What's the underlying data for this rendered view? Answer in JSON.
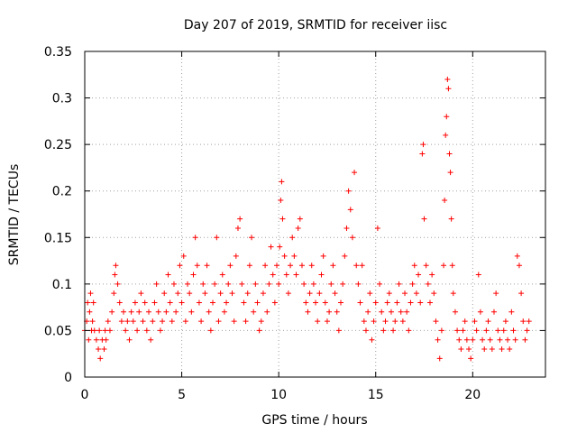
{
  "chart_data": {
    "type": "scatter",
    "title": "Day 207 of 2019, SRMTID for receiver iisc",
    "xlabel": "GPS time / hours",
    "ylabel": "SRMTID / TECUs",
    "xlim": [
      0,
      23.75
    ],
    "ylim": [
      0,
      0.35
    ],
    "x_ticks": [
      0,
      5,
      10,
      15,
      20
    ],
    "x_tick_labels": [
      "0",
      "5",
      "10",
      "15",
      "20"
    ],
    "y_ticks": [
      0,
      0.05,
      0.1,
      0.15,
      0.2,
      0.25,
      0.3,
      0.35
    ],
    "y_tick_labels": [
      "0",
      "0.05",
      "0.1",
      "0.15",
      "0.2",
      "0.25",
      "0.3",
      "0.35"
    ],
    "grid": true,
    "marker": "+",
    "series": [
      {
        "name": "SRMTID",
        "color": "#ff0000",
        "points": [
          [
            0.0,
            0.05
          ],
          [
            0.1,
            0.06
          ],
          [
            0.15,
            0.08
          ],
          [
            0.2,
            0.04
          ],
          [
            0.25,
            0.07
          ],
          [
            0.3,
            0.09
          ],
          [
            0.35,
            0.05
          ],
          [
            0.4,
            0.06
          ],
          [
            0.45,
            0.08
          ],
          [
            0.5,
            0.05
          ],
          [
            0.6,
            0.04
          ],
          [
            0.7,
            0.03
          ],
          [
            0.75,
            0.05
          ],
          [
            0.8,
            0.02
          ],
          [
            0.9,
            0.04
          ],
          [
            1.0,
            0.03
          ],
          [
            1.05,
            0.05
          ],
          [
            1.1,
            0.04
          ],
          [
            1.2,
            0.06
          ],
          [
            1.3,
            0.05
          ],
          [
            1.4,
            0.07
          ],
          [
            1.5,
            0.09
          ],
          [
            1.55,
            0.11
          ],
          [
            1.6,
            0.12
          ],
          [
            1.7,
            0.1
          ],
          [
            1.8,
            0.08
          ],
          [
            1.9,
            0.06
          ],
          [
            2.0,
            0.07
          ],
          [
            2.1,
            0.05
          ],
          [
            2.2,
            0.06
          ],
          [
            2.3,
            0.04
          ],
          [
            2.4,
            0.07
          ],
          [
            2.5,
            0.06
          ],
          [
            2.6,
            0.08
          ],
          [
            2.7,
            0.05
          ],
          [
            2.8,
            0.07
          ],
          [
            2.9,
            0.09
          ],
          [
            3.0,
            0.06
          ],
          [
            3.1,
            0.08
          ],
          [
            3.2,
            0.05
          ],
          [
            3.3,
            0.07
          ],
          [
            3.4,
            0.04
          ],
          [
            3.5,
            0.06
          ],
          [
            3.6,
            0.08
          ],
          [
            3.7,
            0.1
          ],
          [
            3.8,
            0.07
          ],
          [
            3.9,
            0.05
          ],
          [
            4.0,
            0.06
          ],
          [
            4.1,
            0.09
          ],
          [
            4.2,
            0.07
          ],
          [
            4.3,
            0.11
          ],
          [
            4.4,
            0.08
          ],
          [
            4.5,
            0.06
          ],
          [
            4.6,
            0.1
          ],
          [
            4.7,
            0.07
          ],
          [
            4.8,
            0.09
          ],
          [
            4.9,
            0.12
          ],
          [
            5.0,
            0.08
          ],
          [
            5.1,
            0.13
          ],
          [
            5.2,
            0.06
          ],
          [
            5.3,
            0.1
          ],
          [
            5.4,
            0.09
          ],
          [
            5.5,
            0.07
          ],
          [
            5.6,
            0.11
          ],
          [
            5.7,
            0.15
          ],
          [
            5.8,
            0.12
          ],
          [
            5.9,
            0.08
          ],
          [
            6.0,
            0.06
          ],
          [
            6.1,
            0.1
          ],
          [
            6.2,
            0.09
          ],
          [
            6.3,
            0.12
          ],
          [
            6.4,
            0.07
          ],
          [
            6.5,
            0.05
          ],
          [
            6.6,
            0.08
          ],
          [
            6.7,
            0.1
          ],
          [
            6.8,
            0.15
          ],
          [
            6.9,
            0.06
          ],
          [
            7.0,
            0.09
          ],
          [
            7.1,
            0.11
          ],
          [
            7.2,
            0.07
          ],
          [
            7.3,
            0.08
          ],
          [
            7.4,
            0.1
          ],
          [
            7.5,
            0.12
          ],
          [
            7.6,
            0.09
          ],
          [
            7.7,
            0.06
          ],
          [
            7.8,
            0.13
          ],
          [
            7.9,
            0.16
          ],
          [
            8.0,
            0.17
          ],
          [
            8.1,
            0.1
          ],
          [
            8.2,
            0.08
          ],
          [
            8.3,
            0.06
          ],
          [
            8.4,
            0.09
          ],
          [
            8.5,
            0.12
          ],
          [
            8.6,
            0.15
          ],
          [
            8.7,
            0.07
          ],
          [
            8.8,
            0.1
          ],
          [
            8.9,
            0.08
          ],
          [
            9.0,
            0.05
          ],
          [
            9.1,
            0.06
          ],
          [
            9.2,
            0.09
          ],
          [
            9.3,
            0.12
          ],
          [
            9.4,
            0.07
          ],
          [
            9.5,
            0.1
          ],
          [
            9.6,
            0.14
          ],
          [
            9.7,
            0.11
          ],
          [
            9.8,
            0.08
          ],
          [
            9.9,
            0.12
          ],
          [
            10.0,
            0.1
          ],
          [
            10.05,
            0.14
          ],
          [
            10.1,
            0.19
          ],
          [
            10.15,
            0.21
          ],
          [
            10.2,
            0.17
          ],
          [
            10.3,
            0.13
          ],
          [
            10.4,
            0.11
          ],
          [
            10.5,
            0.09
          ],
          [
            10.6,
            0.12
          ],
          [
            10.7,
            0.15
          ],
          [
            10.8,
            0.13
          ],
          [
            10.9,
            0.11
          ],
          [
            11.0,
            0.16
          ],
          [
            11.1,
            0.17
          ],
          [
            11.2,
            0.12
          ],
          [
            11.3,
            0.1
          ],
          [
            11.4,
            0.08
          ],
          [
            11.5,
            0.07
          ],
          [
            11.6,
            0.09
          ],
          [
            11.7,
            0.12
          ],
          [
            11.8,
            0.1
          ],
          [
            11.9,
            0.08
          ],
          [
            12.0,
            0.06
          ],
          [
            12.1,
            0.09
          ],
          [
            12.2,
            0.11
          ],
          [
            12.3,
            0.13
          ],
          [
            12.4,
            0.08
          ],
          [
            12.5,
            0.06
          ],
          [
            12.6,
            0.07
          ],
          [
            12.7,
            0.1
          ],
          [
            12.8,
            0.12
          ],
          [
            12.9,
            0.09
          ],
          [
            13.0,
            0.07
          ],
          [
            13.1,
            0.05
          ],
          [
            13.2,
            0.08
          ],
          [
            13.3,
            0.1
          ],
          [
            13.4,
            0.13
          ],
          [
            13.5,
            0.16
          ],
          [
            13.6,
            0.2
          ],
          [
            13.7,
            0.18
          ],
          [
            13.8,
            0.15
          ],
          [
            13.9,
            0.22
          ],
          [
            14.0,
            0.12
          ],
          [
            14.1,
            0.1
          ],
          [
            14.2,
            0.08
          ],
          [
            14.3,
            0.12
          ],
          [
            14.4,
            0.06
          ],
          [
            14.5,
            0.05
          ],
          [
            14.6,
            0.07
          ],
          [
            14.7,
            0.09
          ],
          [
            14.8,
            0.04
          ],
          [
            14.9,
            0.06
          ],
          [
            15.0,
            0.08
          ],
          [
            15.1,
            0.16
          ],
          [
            15.2,
            0.1
          ],
          [
            15.3,
            0.07
          ],
          [
            15.4,
            0.05
          ],
          [
            15.5,
            0.06
          ],
          [
            15.6,
            0.08
          ],
          [
            15.7,
            0.09
          ],
          [
            15.8,
            0.07
          ],
          [
            15.9,
            0.05
          ],
          [
            16.0,
            0.06
          ],
          [
            16.1,
            0.08
          ],
          [
            16.2,
            0.1
          ],
          [
            16.3,
            0.07
          ],
          [
            16.4,
            0.06
          ],
          [
            16.5,
            0.09
          ],
          [
            16.6,
            0.07
          ],
          [
            16.7,
            0.05
          ],
          [
            16.8,
            0.08
          ],
          [
            16.9,
            0.1
          ],
          [
            17.0,
            0.12
          ],
          [
            17.1,
            0.09
          ],
          [
            17.2,
            0.11
          ],
          [
            17.3,
            0.08
          ],
          [
            17.4,
            0.24
          ],
          [
            17.45,
            0.25
          ],
          [
            17.5,
            0.17
          ],
          [
            17.6,
            0.12
          ],
          [
            17.7,
            0.1
          ],
          [
            17.8,
            0.08
          ],
          [
            17.9,
            0.11
          ],
          [
            18.0,
            0.09
          ],
          [
            18.1,
            0.06
          ],
          [
            18.2,
            0.04
          ],
          [
            18.3,
            0.02
          ],
          [
            18.4,
            0.05
          ],
          [
            18.5,
            0.12
          ],
          [
            18.55,
            0.19
          ],
          [
            18.6,
            0.26
          ],
          [
            18.65,
            0.28
          ],
          [
            18.7,
            0.32
          ],
          [
            18.75,
            0.31
          ],
          [
            18.8,
            0.24
          ],
          [
            18.85,
            0.22
          ],
          [
            18.9,
            0.17
          ],
          [
            18.95,
            0.12
          ],
          [
            19.0,
            0.09
          ],
          [
            19.1,
            0.07
          ],
          [
            19.2,
            0.05
          ],
          [
            19.3,
            0.04
          ],
          [
            19.4,
            0.03
          ],
          [
            19.5,
            0.05
          ],
          [
            19.6,
            0.06
          ],
          [
            19.7,
            0.04
          ],
          [
            19.8,
            0.03
          ],
          [
            19.9,
            0.02
          ],
          [
            20.0,
            0.04
          ],
          [
            20.1,
            0.06
          ],
          [
            20.2,
            0.05
          ],
          [
            20.3,
            0.11
          ],
          [
            20.4,
            0.07
          ],
          [
            20.5,
            0.04
          ],
          [
            20.6,
            0.03
          ],
          [
            20.7,
            0.05
          ],
          [
            20.8,
            0.06
          ],
          [
            20.9,
            0.04
          ],
          [
            21.0,
            0.03
          ],
          [
            21.1,
            0.07
          ],
          [
            21.2,
            0.09
          ],
          [
            21.3,
            0.05
          ],
          [
            21.4,
            0.04
          ],
          [
            21.5,
            0.03
          ],
          [
            21.6,
            0.05
          ],
          [
            21.7,
            0.06
          ],
          [
            21.8,
            0.04
          ],
          [
            21.9,
            0.03
          ],
          [
            22.0,
            0.07
          ],
          [
            22.1,
            0.05
          ],
          [
            22.2,
            0.04
          ],
          [
            22.3,
            0.13
          ],
          [
            22.4,
            0.12
          ],
          [
            22.5,
            0.09
          ],
          [
            22.6,
            0.06
          ],
          [
            22.7,
            0.04
          ],
          [
            22.8,
            0.05
          ],
          [
            22.9,
            0.06
          ]
        ]
      }
    ]
  }
}
